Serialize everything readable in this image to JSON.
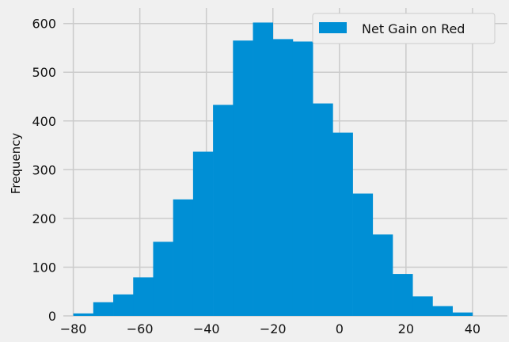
{
  "chart_data": {
    "type": "bar",
    "subtype": "histogram",
    "ylabel": "Frequency",
    "xlabel": "",
    "xlim": [
      -83,
      50.5
    ],
    "ylim": [
      0,
      632
    ],
    "xticks": [
      -80,
      -60,
      -40,
      -20,
      0,
      20,
      40
    ],
    "yticks": [
      0,
      100,
      200,
      300,
      400,
      500,
      600
    ],
    "grid": true,
    "legend_position": "top-right",
    "colors": {
      "bar": "#008fd5",
      "background": "#f0f0f0",
      "grid": "#cbcbcb"
    },
    "series": [
      {
        "name": "Net Gain on Red",
        "bins": [
          {
            "left": -80,
            "right": -74,
            "count": 5
          },
          {
            "left": -74,
            "right": -68,
            "count": 28
          },
          {
            "left": -68,
            "right": -62,
            "count": 44
          },
          {
            "left": -62,
            "right": -56,
            "count": 79
          },
          {
            "left": -56,
            "right": -50,
            "count": 152
          },
          {
            "left": -50,
            "right": -44,
            "count": 239
          },
          {
            "left": -44,
            "right": -38,
            "count": 337
          },
          {
            "left": -38,
            "right": -32,
            "count": 433
          },
          {
            "left": -32,
            "right": -26,
            "count": 565
          },
          {
            "left": -26,
            "right": -20,
            "count": 602
          },
          {
            "left": -20,
            "right": -14,
            "count": 568
          },
          {
            "left": -14,
            "right": -8,
            "count": 563
          },
          {
            "left": -8,
            "right": -2,
            "count": 436
          },
          {
            "left": -2,
            "right": 4,
            "count": 376
          },
          {
            "left": 4,
            "right": 10,
            "count": 251
          },
          {
            "left": 10,
            "right": 16,
            "count": 167
          },
          {
            "left": 16,
            "right": 22,
            "count": 86
          },
          {
            "left": 22,
            "right": 28,
            "count": 40
          },
          {
            "left": 28,
            "right": 34,
            "count": 20
          },
          {
            "left": 34,
            "right": 40,
            "count": 7
          }
        ]
      }
    ]
  }
}
